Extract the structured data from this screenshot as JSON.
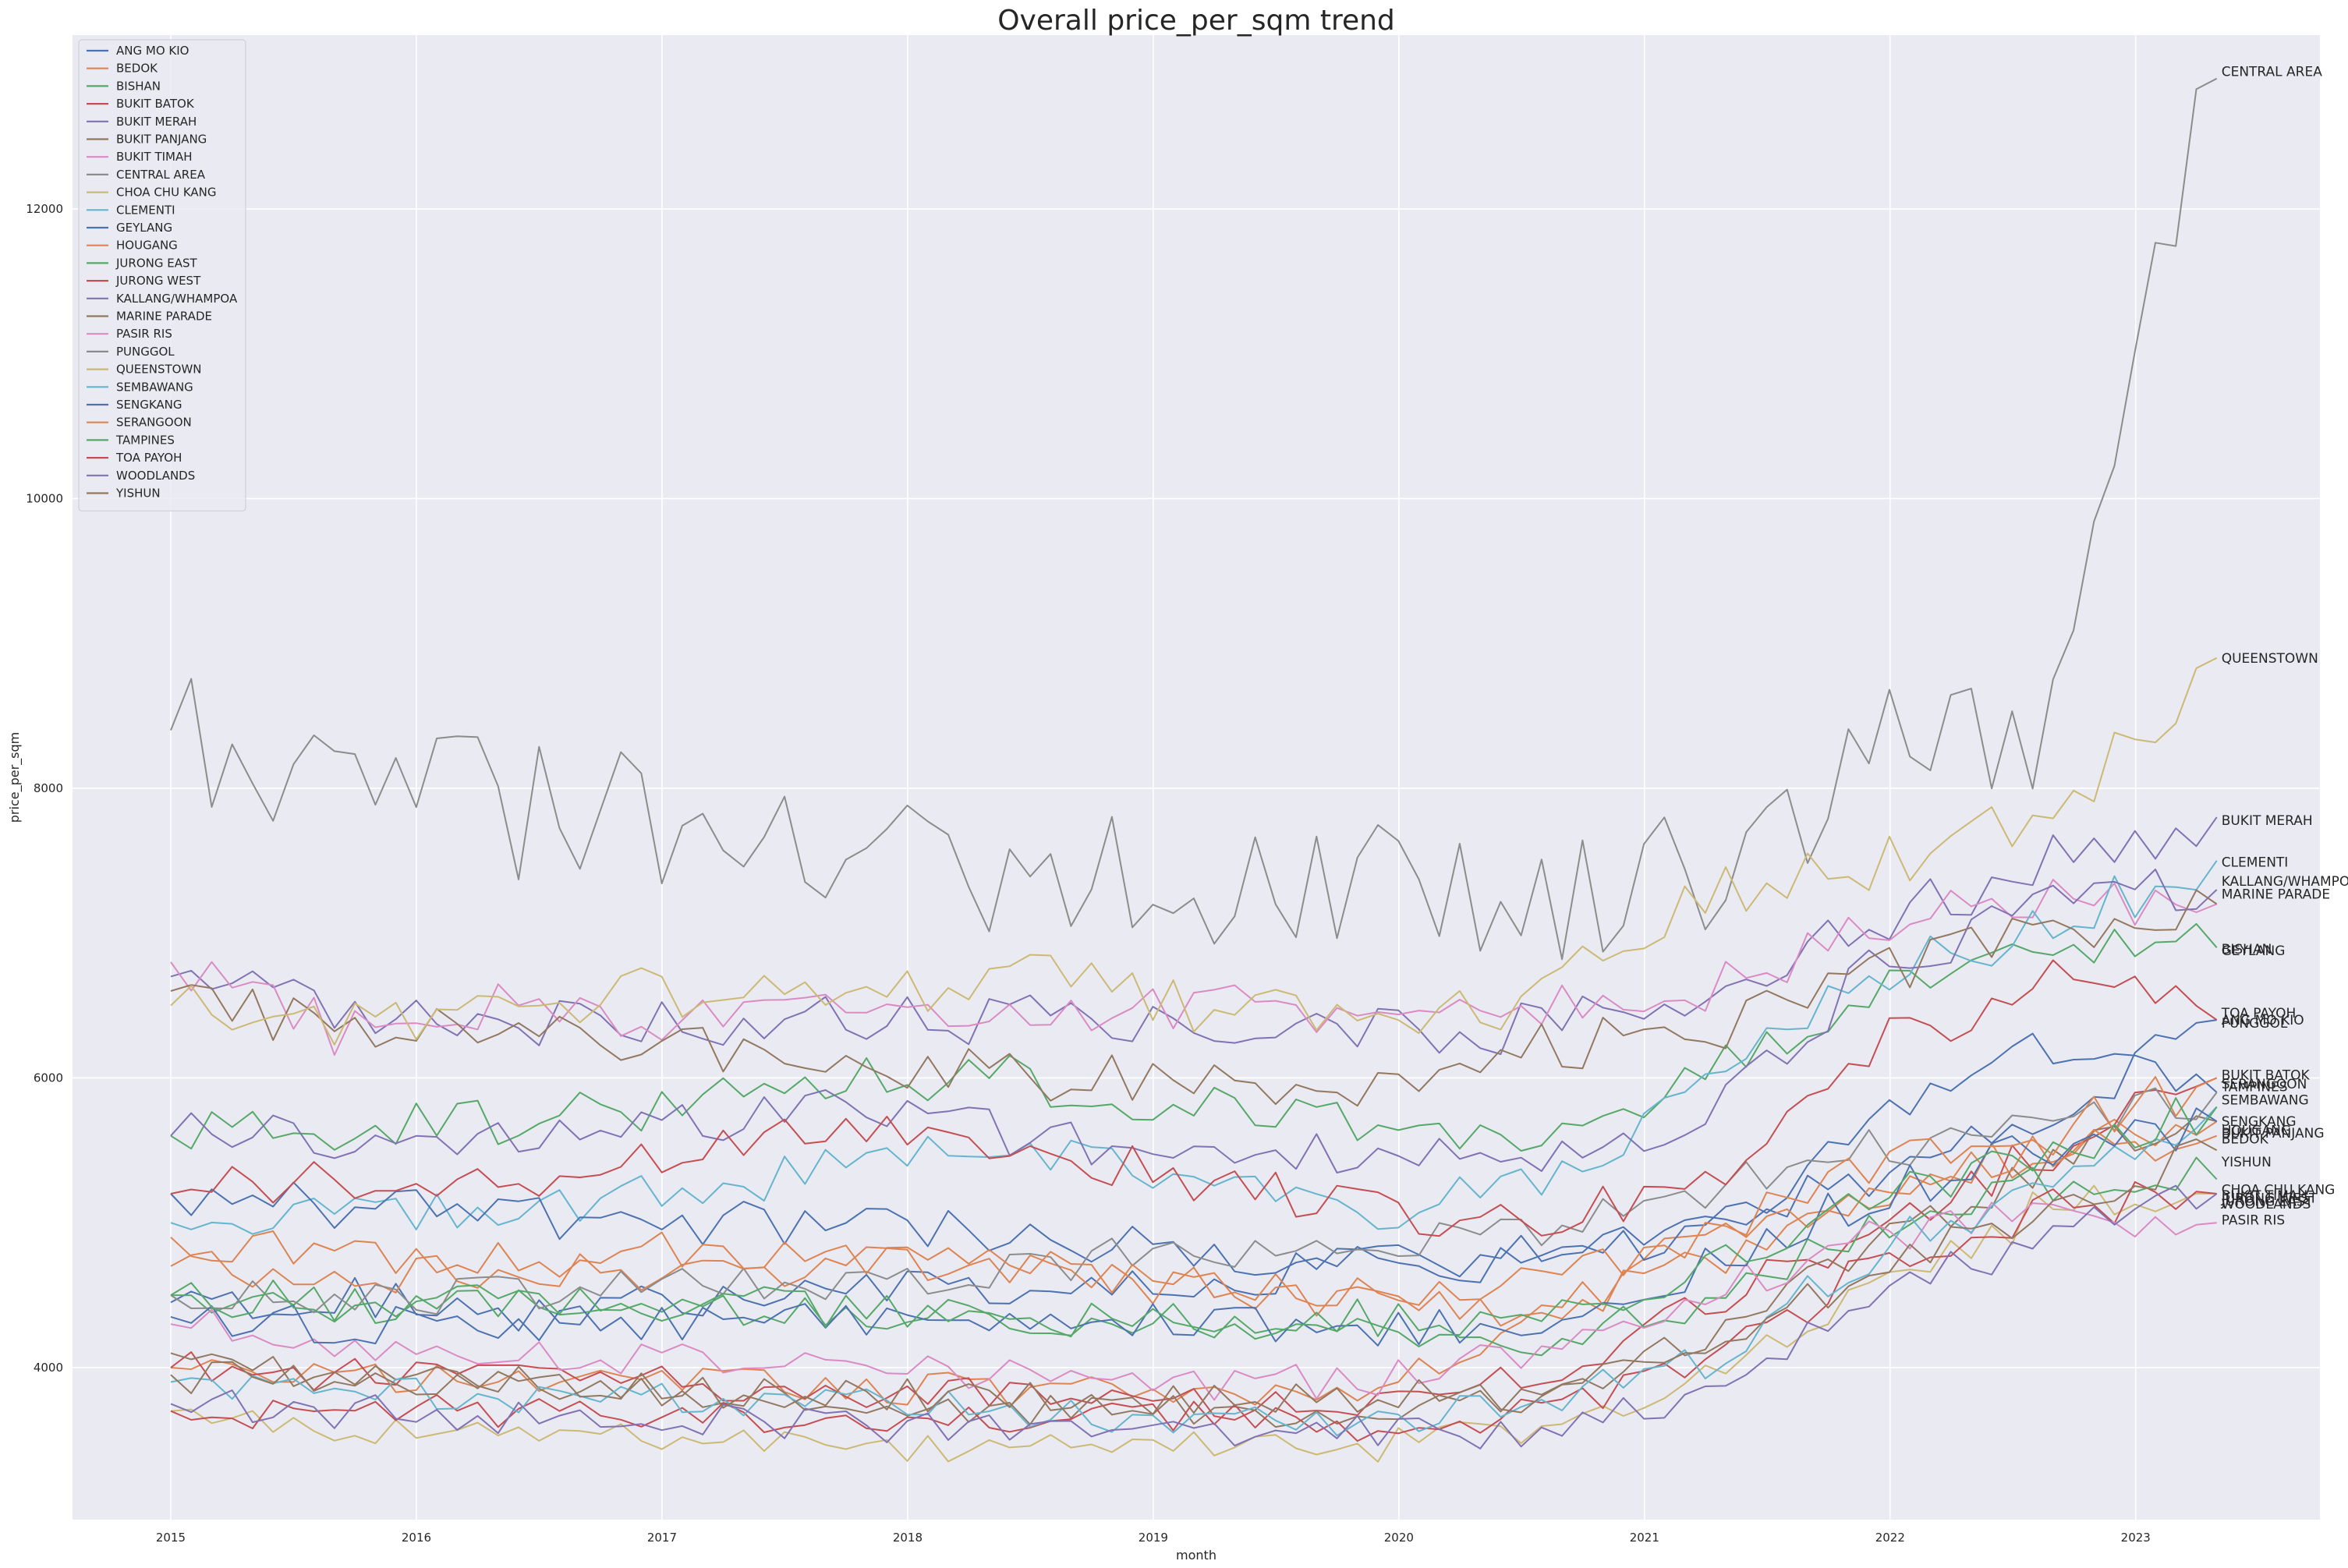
{
  "chart_data": {
    "type": "line",
    "title": "Overall price_per_sqm trend",
    "xlabel": "month",
    "ylabel": "price_per_sqm",
    "xlim": [
      2014.6,
      2023.75
    ],
    "ylim": [
      2950,
      13200
    ],
    "x_ticks": [
      2015,
      2016,
      2017,
      2018,
      2019,
      2020,
      2021,
      2022,
      2023
    ],
    "x_tick_labels": [
      "2015",
      "2016",
      "2017",
      "2018",
      "2019",
      "2020",
      "2021",
      "2022",
      "2023"
    ],
    "y_ticks": [
      4000,
      6000,
      8000,
      10000,
      12000
    ],
    "y_tick_labels": [
      "4000",
      "6000",
      "8000",
      "10000",
      "12000"
    ],
    "grid": true,
    "legend_position": "top-left",
    "x_start": 2015.0,
    "x_end": 2023.33,
    "n_points": 101,
    "series": [
      {
        "name": "ANG MO KIO",
        "color": "#4c72b0",
        "anchors": [
          4450,
          4500,
          4380,
          4450,
          4600,
          4550,
          4600,
          4700,
          4800,
          5000,
          5300,
          5700,
          6400
        ]
      },
      {
        "name": "BEDOK",
        "color": "#dd8452",
        "anchors": [
          4000,
          3950,
          3950,
          3900,
          3850,
          3850,
          3800,
          3900,
          4300,
          4900,
          5200,
          5500,
          5700
        ]
      },
      {
        "name": "BISHAN",
        "color": "#55a868",
        "anchors": [
          5600,
          5650,
          5700,
          5800,
          6000,
          6000,
          5800,
          5700,
          5500,
          6000,
          6600,
          7000,
          6900
        ]
      },
      {
        "name": "BUKIT BATOK",
        "color": "#c44e52",
        "anchors": [
          4000,
          3950,
          3950,
          3900,
          3850,
          3800,
          3750,
          3750,
          3950,
          4400,
          5000,
          5500,
          6000
        ]
      },
      {
        "name": "BUKIT MERAH",
        "color": "#8172b3",
        "anchors": [
          6700,
          6500,
          6400,
          6350,
          6400,
          6400,
          6300,
          6300,
          6350,
          6600,
          7100,
          7500,
          7800
        ]
      },
      {
        "name": "BUKIT PANJANG",
        "color": "#937860",
        "anchors": [
          4100,
          3950,
          3900,
          3850,
          3750,
          3700,
          3700,
          3700,
          3800,
          4200,
          4900,
          5400,
          5700
        ]
      },
      {
        "name": "BUKIT TIMAH",
        "color": "#da8bc3",
        "anchors": [
          6800,
          6300,
          6500,
          6400,
          6500,
          6450,
          6500,
          6450,
          6500,
          6600,
          7000,
          7300,
          7200
        ]
      },
      {
        "name": "CENTRAL AREA",
        "color": "#8c8c8c",
        "anchors": [
          8400,
          8200,
          7800,
          7700,
          7600,
          7500,
          7400,
          7500,
          7200,
          7500,
          8200,
          8500,
          12900
        ]
      },
      {
        "name": "CHOA CHU KANG",
        "color": "#ccb974",
        "anchors": [
          3700,
          3600,
          3550,
          3500,
          3450,
          3450,
          3450,
          3450,
          3600,
          3900,
          4600,
          5100,
          5200
        ]
      },
      {
        "name": "CLEMENTI",
        "color": "#64b5cd",
        "anchors": [
          5000,
          5050,
          5100,
          5200,
          5400,
          5500,
          5300,
          5000,
          5300,
          5900,
          6700,
          7000,
          7500
        ]
      },
      {
        "name": "GEYLANG",
        "color": "#4c72b0",
        "anchors": [
          5200,
          5100,
          5050,
          5000,
          5000,
          4900,
          4800,
          4750,
          4700,
          4900,
          5700,
          6200,
          5900
        ]
      },
      {
        "name": "HOUGANG",
        "color": "#dd8452",
        "anchors": [
          4700,
          4650,
          4650,
          4650,
          4700,
          4650,
          4550,
          4450,
          4400,
          4700,
          5200,
          5500,
          5600
        ]
      },
      {
        "name": "JURONG EAST",
        "color": "#55a868",
        "anchors": [
          4500,
          4450,
          4400,
          4400,
          4400,
          4350,
          4300,
          4350,
          4200,
          4450,
          5000,
          5300,
          5300
        ]
      },
      {
        "name": "JURONG WEST",
        "color": "#c44e52",
        "anchors": [
          3700,
          3700,
          3700,
          3650,
          3650,
          3650,
          3650,
          3600,
          3700,
          4050,
          4700,
          5100,
          5200
        ]
      },
      {
        "name": "KALLANG/WHAMPOA",
        "color": "#8172b3",
        "anchors": [
          5600,
          5600,
          5600,
          5700,
          5800,
          5600,
          5500,
          5500,
          5400,
          5700,
          6800,
          7200,
          7300
        ]
      },
      {
        "name": "MARINE PARADE",
        "color": "#937860",
        "anchors": [
          6600,
          6300,
          6300,
          6200,
          6100,
          6000,
          6000,
          5900,
          6200,
          6300,
          6700,
          7000,
          7200
        ]
      },
      {
        "name": "PASIR RIS",
        "color": "#da8bc3",
        "anchors": [
          4300,
          4200,
          4100,
          4050,
          4000,
          3950,
          3900,
          3900,
          4100,
          4500,
          4900,
          5100,
          5000
        ]
      },
      {
        "name": "PUNGGOL",
        "color": "#8c8c8c",
        "anchors": [
          4500,
          4500,
          4500,
          4550,
          4600,
          4700,
          4800,
          4850,
          4900,
          5200,
          5500,
          5700,
          5900
        ]
      },
      {
        "name": "QUEENSTOWN",
        "color": "#ccb974",
        "anchors": [
          6500,
          6400,
          6500,
          6600,
          6500,
          6700,
          6500,
          6400,
          6500,
          7300,
          7500,
          7800,
          8900
        ]
      },
      {
        "name": "SEMBAWANG",
        "color": "#64b5cd",
        "anchors": [
          3900,
          3850,
          3800,
          3800,
          3750,
          3700,
          3650,
          3600,
          3750,
          4050,
          4800,
          5300,
          5800
        ]
      },
      {
        "name": "SENGKANG",
        "color": "#4c72b0",
        "anchors": [
          4350,
          4300,
          4300,
          4300,
          4350,
          4350,
          4300,
          4250,
          4300,
          4700,
          5200,
          5500,
          5700
        ]
      },
      {
        "name": "SERANGOON",
        "color": "#dd8452",
        "anchors": [
          4900,
          4800,
          4750,
          4800,
          4750,
          4700,
          4600,
          4550,
          4550,
          4900,
          5400,
          5600,
          6000
        ]
      },
      {
        "name": "TAMPINES",
        "color": "#55a868",
        "anchors": [
          4500,
          4450,
          4450,
          4450,
          4400,
          4350,
          4300,
          4250,
          4300,
          4700,
          5200,
          5400,
          5800
        ]
      },
      {
        "name": "TOA PAYOH",
        "color": "#c44e52",
        "anchors": [
          5200,
          5300,
          5300,
          5500,
          5600,
          5500,
          5300,
          5100,
          5000,
          5300,
          6200,
          6700,
          6400
        ]
      },
      {
        "name": "WOODLANDS",
        "color": "#8172b3",
        "anchors": [
          3750,
          3700,
          3650,
          3650,
          3600,
          3550,
          3550,
          3550,
          3500,
          3850,
          4500,
          4900,
          5200
        ]
      },
      {
        "name": "YISHUN",
        "color": "#937860",
        "anchors": [
          3950,
          3900,
          3900,
          3850,
          3800,
          3800,
          3750,
          3800,
          3800,
          4100,
          4700,
          5100,
          5500
        ]
      }
    ],
    "end_labels": [
      {
        "name": "CENTRAL AREA",
        "y": 12950
      },
      {
        "name": "QUEENSTOWN",
        "y": 8900
      },
      {
        "name": "BUKIT MERAH",
        "y": 7780
      },
      {
        "name": "CLEMENTI",
        "y": 7490
      },
      {
        "name": "KALLANG/WHAMPOA",
        "y": 7360
      },
      {
        "name": "MARINE PARADE",
        "y": 7270
      },
      {
        "name": "BISHAN",
        "y": 6890
      },
      {
        "name": "GEYLANG",
        "y": 6880
      },
      {
        "name": "TOA PAYOH",
        "y": 6450
      },
      {
        "name": "ANG MO KIO",
        "y": 6400
      },
      {
        "name": "PUNGGOL",
        "y": 6380
      },
      {
        "name": "BUKIT BATOK",
        "y": 6020
      },
      {
        "name": "SERANGOON",
        "y": 5960
      },
      {
        "name": "TAMPINES",
        "y": 5940
      },
      {
        "name": "SEMBAWANG",
        "y": 5850
      },
      {
        "name": "SENGKANG",
        "y": 5700
      },
      {
        "name": "HOUGANG",
        "y": 5640
      },
      {
        "name": "BUKIT PANJANG",
        "y": 5620
      },
      {
        "name": "BEDOK",
        "y": 5580
      },
      {
        "name": "YISHUN",
        "y": 5420
      },
      {
        "name": "CHOA CHU KANG",
        "y": 5230
      },
      {
        "name": "BUKIT TIMAH",
        "y": 5190
      },
      {
        "name": "JURONG WEST",
        "y": 5170
      },
      {
        "name": "JURONG EAST",
        "y": 5150
      },
      {
        "name": "WOODLANDS",
        "y": 5130
      },
      {
        "name": "PASIR RIS",
        "y": 5020
      }
    ]
  }
}
